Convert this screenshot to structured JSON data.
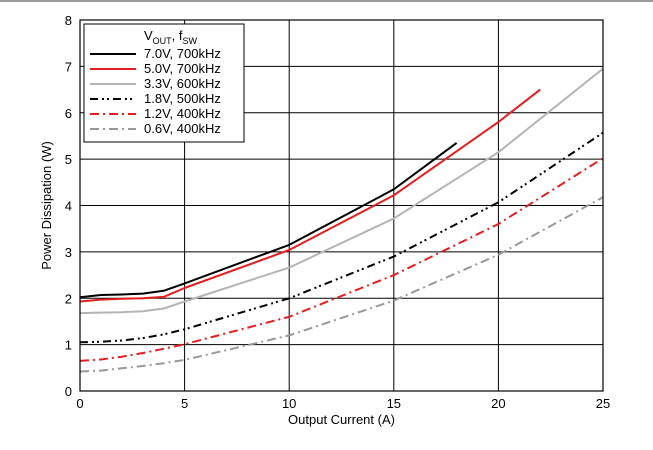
{
  "chart_data": {
    "type": "line",
    "title": "",
    "xlabel": "Output Current (A)",
    "ylabel": "Power Dissipation (W)",
    "xlim": [
      0,
      25
    ],
    "ylim": [
      0,
      8
    ],
    "xticks": [
      "0",
      "5",
      "10",
      "15",
      "20",
      "25"
    ],
    "yticks": [
      "0",
      "1",
      "2",
      "3",
      "4",
      "5",
      "6",
      "7",
      "8"
    ],
    "grid": true,
    "legend_position": "top-left",
    "legend_title": {
      "main": "V",
      "sub1": "OUT",
      "mid": ", f",
      "sub2": "SW"
    },
    "series": [
      {
        "name": "7.0V, 700kHz",
        "color": "#000000",
        "dash": "solid",
        "x": [
          0,
          1,
          2,
          3,
          4,
          5,
          10,
          15,
          18
        ],
        "y": [
          2.02,
          2.07,
          2.08,
          2.1,
          2.16,
          2.32,
          3.15,
          4.35,
          5.35
        ]
      },
      {
        "name": "5.0V, 700kHz",
        "color": "#e41e1e",
        "dash": "solid",
        "x": [
          0,
          1,
          2,
          3,
          4,
          5,
          10,
          15,
          20,
          22
        ],
        "y": [
          1.93,
          1.97,
          1.99,
          2.0,
          2.03,
          2.22,
          3.04,
          4.22,
          5.8,
          6.5
        ]
      },
      {
        "name": "3.3V, 600kHz",
        "color": "#b4b4b4",
        "dash": "solid",
        "x": [
          0,
          1,
          2,
          3,
          4,
          5,
          10,
          15,
          20,
          25
        ],
        "y": [
          1.68,
          1.69,
          1.7,
          1.72,
          1.78,
          1.93,
          2.66,
          3.72,
          5.15,
          6.95
        ]
      },
      {
        "name": "1.8V, 500kHz",
        "color": "#000000",
        "dash": "dashdotdot",
        "x": [
          0,
          1,
          2,
          3,
          4,
          5,
          10,
          15,
          20,
          25
        ],
        "y": [
          1.05,
          1.06,
          1.09,
          1.14,
          1.22,
          1.33,
          2.0,
          2.9,
          4.07,
          5.57
        ]
      },
      {
        "name": "1.2V, 400kHz",
        "color": "#e41e1e",
        "dash": "dashdot",
        "x": [
          0,
          1,
          2,
          3,
          4,
          5,
          10,
          15,
          20,
          25
        ],
        "y": [
          0.65,
          0.68,
          0.74,
          0.82,
          0.91,
          1.01,
          1.6,
          2.5,
          3.6,
          5.02
        ]
      },
      {
        "name": "0.6V, 400kHz",
        "color": "#999999",
        "dash": "dashdot",
        "x": [
          0,
          1,
          2,
          3,
          4,
          5,
          10,
          15,
          20,
          25
        ],
        "y": [
          0.42,
          0.44,
          0.49,
          0.54,
          0.6,
          0.67,
          1.2,
          1.95,
          2.94,
          4.18
        ]
      }
    ]
  }
}
